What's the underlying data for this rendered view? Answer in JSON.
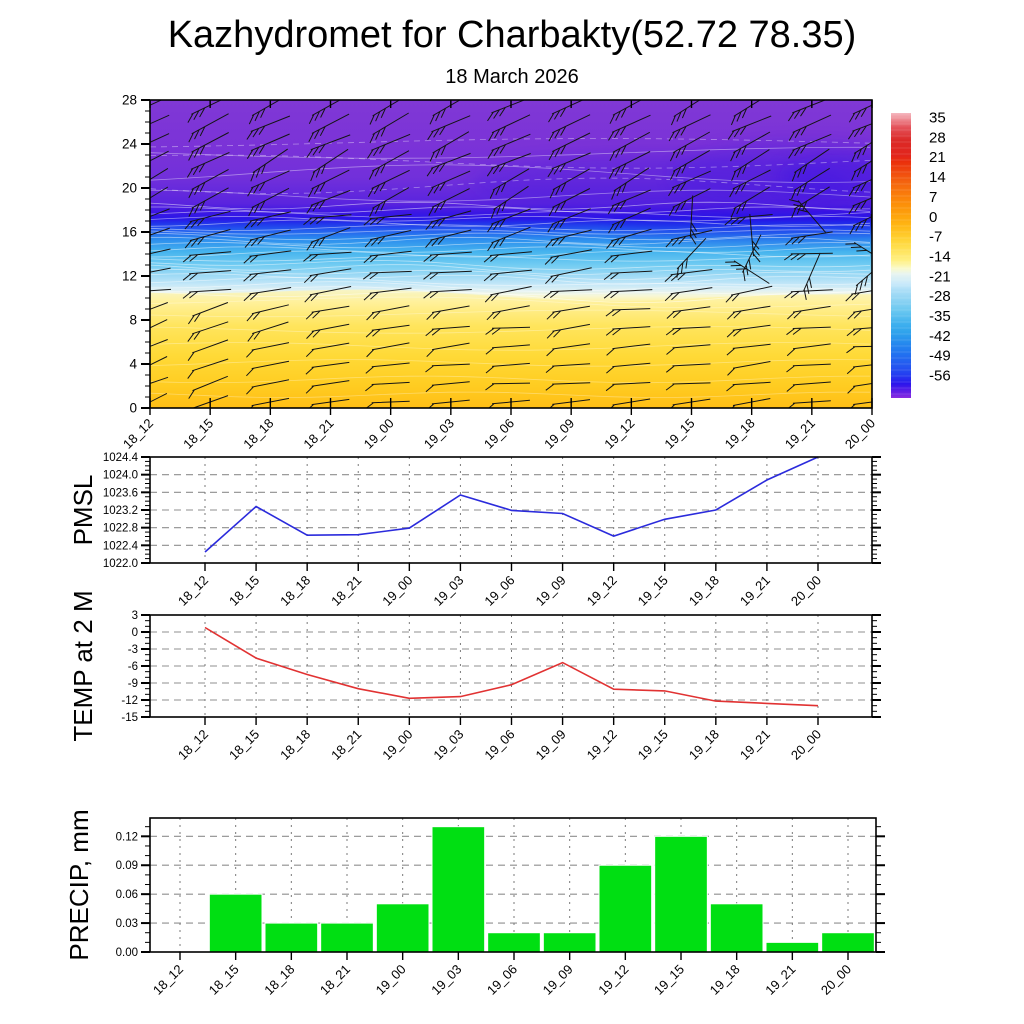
{
  "header": {
    "title": "Kazhydromet for Charbakty(52.72 78.35)",
    "subtitle": "18 March 2026"
  },
  "time_labels": [
    "18_12",
    "18_15",
    "18_18",
    "18_21",
    "19_00",
    "19_03",
    "19_06",
    "19_09",
    "19_12",
    "19_15",
    "19_18",
    "19_21",
    "20_00"
  ],
  "style": {
    "pmsl_line_color": "#2B2BDC",
    "temp_line_color": "#E13232",
    "precip_bar_color": "#00DF12",
    "barb_color": "#151515",
    "contour_line_color": "#ffffff"
  },
  "chart_data": [
    {
      "type": "heatmap",
      "id": "upper_air",
      "description": "Vertical temperature cross-section (deg C) with wind barbs",
      "x_categories": [
        "18_12",
        "18_15",
        "18_18",
        "18_21",
        "19_00",
        "19_03",
        "19_06",
        "19_09",
        "19_12",
        "19_15",
        "19_18",
        "19_21",
        "20_00"
      ],
      "ylim": [
        0,
        28
      ],
      "yticks": [
        "0",
        "4",
        "8",
        "12",
        "16",
        "20",
        "24",
        "28"
      ],
      "temperature_bands": [
        {
          "heights": [
            0,
            10.5
          ],
          "temp_c": [
            -2,
            -13
          ],
          "appearance": "yellow-orange"
        },
        {
          "heights": [
            10.5,
            12
          ],
          "temp_c": [
            -13,
            -17
          ],
          "appearance": "pale yellow to pale blue"
        },
        {
          "heights": [
            12,
            15
          ],
          "temp_c": [
            -17,
            -27
          ],
          "appearance": "light blue to cyan"
        },
        {
          "heights": [
            15,
            16.5
          ],
          "temp_c": [
            -27,
            -40
          ],
          "appearance": "blue"
        },
        {
          "heights": [
            16.5,
            18
          ],
          "temp_c": [
            -40,
            -54
          ],
          "appearance": "dark blue"
        },
        {
          "heights": [
            18,
            28
          ],
          "temp_c": [
            -54,
            -60
          ],
          "appearance": "purple"
        }
      ],
      "field_gradient": [
        [
          0,
          "#8038D6"
        ],
        [
          0.143,
          "#7B33D7"
        ],
        [
          0.25,
          "#7230DA"
        ],
        [
          0.336,
          "#5A24DE"
        ],
        [
          0.364,
          "#3D17E3"
        ],
        [
          0.386,
          "#2917E8"
        ],
        [
          0.4,
          "#2233EA"
        ],
        [
          0.421,
          "#2359EE"
        ],
        [
          0.45,
          "#2B8BEE"
        ],
        [
          0.493,
          "#46B4EE"
        ],
        [
          0.536,
          "#72CCF2"
        ],
        [
          0.571,
          "#9FDAF5"
        ],
        [
          0.6,
          "#C6E8F8"
        ],
        [
          0.621,
          "#E4F2F2"
        ],
        [
          0.636,
          "#F7F7D6"
        ],
        [
          0.657,
          "#FFF2A0"
        ],
        [
          0.714,
          "#FFE65C"
        ],
        [
          0.786,
          "#FFDC3C"
        ],
        [
          0.857,
          "#FFD42C"
        ],
        [
          0.929,
          "#FFCB20"
        ],
        [
          1,
          "#FFBE16"
        ]
      ],
      "yellow_overlay_gradient": [
        [
          0,
          "#F6F5C8"
        ],
        [
          0.1,
          "#FFF19C"
        ],
        [
          0.3,
          "#FFE55E"
        ],
        [
          0.55,
          "#FFDA38"
        ],
        [
          0.8,
          "#FFCD22"
        ],
        [
          1,
          "#FFBE16"
        ]
      ],
      "colorbar": {
        "tick_labels": [
          "35",
          "28",
          "21",
          "14",
          "7",
          "0",
          "-7",
          "-14",
          "-21",
          "-28",
          "-35",
          "-42",
          "-49",
          "-56"
        ],
        "stops": [
          [
            0,
            "#F5B8C0"
          ],
          [
            0.05,
            "#E4525A"
          ],
          [
            0.095,
            "#DB2A28"
          ],
          [
            0.15,
            "#E2251C"
          ],
          [
            0.17,
            "#EA2E0C"
          ],
          [
            0.215,
            "#F1500F"
          ],
          [
            0.245,
            "#F4650F"
          ],
          [
            0.29,
            "#FA7F0B"
          ],
          [
            0.32,
            "#FC8F09"
          ],
          [
            0.37,
            "#FEA90E"
          ],
          [
            0.395,
            "#FFB714"
          ],
          [
            0.44,
            "#FFD133"
          ],
          [
            0.47,
            "#FFDE4D"
          ],
          [
            0.52,
            "#FFF187"
          ],
          [
            0.545,
            "#FAFACB"
          ],
          [
            0.565,
            "#E7F4F1"
          ],
          [
            0.6,
            "#C8E9FA"
          ],
          [
            0.62,
            "#AEDFF7"
          ],
          [
            0.66,
            "#8AD2F3"
          ],
          [
            0.695,
            "#68C7F0"
          ],
          [
            0.74,
            "#3FB0EE"
          ],
          [
            0.77,
            "#2FA3EC"
          ],
          [
            0.81,
            "#2588EE"
          ],
          [
            0.845,
            "#2172F0"
          ],
          [
            0.89,
            "#2455F0"
          ],
          [
            0.92,
            "#243CF0"
          ],
          [
            0.95,
            "#2B15EC"
          ],
          [
            0.975,
            "#5A1DE6"
          ],
          [
            1,
            "#8A2CE0"
          ]
        ]
      },
      "wind_barbs": {
        "columns": 13,
        "rows": 17
      }
    },
    {
      "type": "line",
      "id": "pmsl",
      "ylabel": "PMSL",
      "categories": [
        "18_12",
        "18_15",
        "18_18",
        "18_21",
        "19_00",
        "19_03",
        "19_06",
        "19_09",
        "19_12",
        "19_15",
        "19_18",
        "19_21",
        "20_00"
      ],
      "values": [
        1022.25,
        1023.28,
        1022.63,
        1022.64,
        1022.79,
        1023.54,
        1023.19,
        1023.12,
        1022.61,
        1022.99,
        1023.2,
        1023.88,
        1024.4
      ],
      "ylim": [
        1022.0,
        1024.4
      ],
      "yticks": [
        "1022.0",
        "1022.4",
        "1022.8",
        "1023.2",
        "1023.6",
        "1024.0",
        "1024.4"
      ]
    },
    {
      "type": "line",
      "id": "temp2m",
      "ylabel": "TEMP at 2 M",
      "categories": [
        "18_12",
        "18_15",
        "18_18",
        "18_21",
        "19_00",
        "19_03",
        "19_06",
        "19_09",
        "19_12",
        "19_15",
        "19_18",
        "19_21",
        "20_00"
      ],
      "values": [
        0.8,
        -4.6,
        -7.5,
        -10.0,
        -11.7,
        -11.4,
        -9.3,
        -5.4,
        -10.1,
        -10.4,
        -12.2,
        -12.6,
        -13.0
      ],
      "ylim": [
        -15,
        3
      ],
      "yticks": [
        "-15",
        "-12",
        "-9",
        "-6",
        "-3",
        "0",
        "3"
      ]
    },
    {
      "type": "bar",
      "id": "precip",
      "ylabel": "PRECIP, mm",
      "categories": [
        "18_12",
        "18_15",
        "18_18",
        "18_21",
        "19_00",
        "19_03",
        "19_06",
        "19_09",
        "19_12",
        "19_15",
        "19_18",
        "19_21",
        "20_00"
      ],
      "values": [
        0,
        0.06,
        0.03,
        0.03,
        0.05,
        0.13,
        0.02,
        0.02,
        0.09,
        0.12,
        0.05,
        0.01,
        0.02
      ],
      "ylim": [
        0,
        0.139
      ],
      "yticks": [
        "0.00",
        "0.03",
        "0.06",
        "0.09",
        "0.12"
      ]
    }
  ]
}
